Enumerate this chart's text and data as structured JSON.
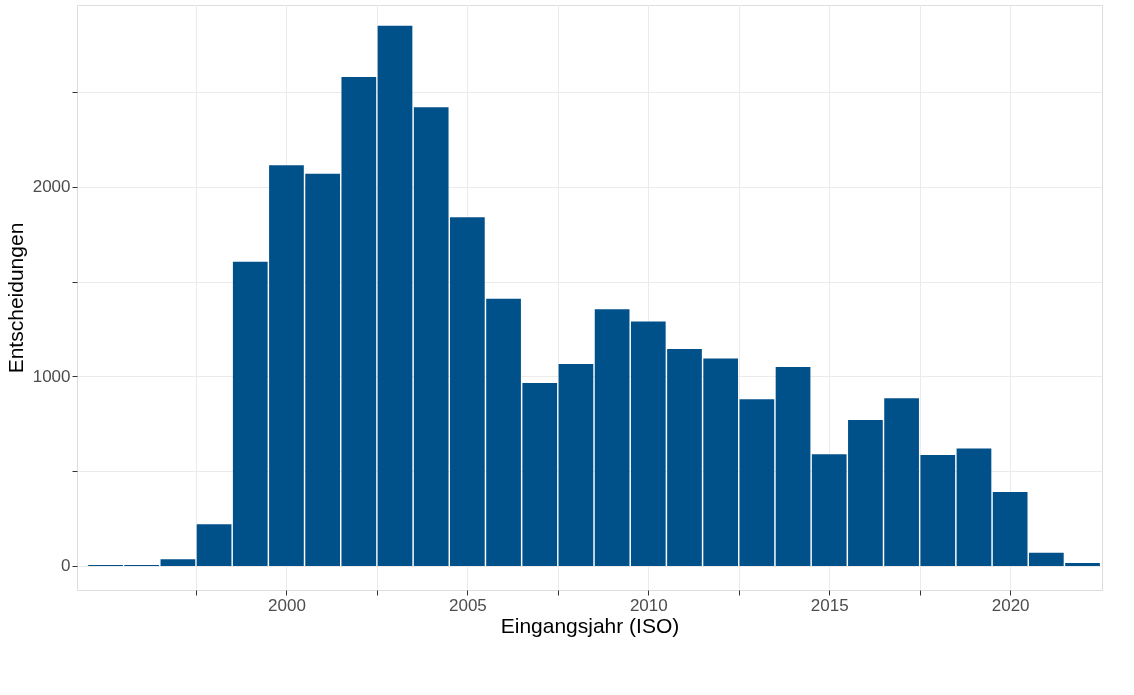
{
  "chart_data": {
    "type": "bar",
    "xlabel": "Eingangsjahr (ISO)",
    "ylabel": "Entscheidungen",
    "x": [
      1995,
      1996,
      1997,
      1998,
      1999,
      2000,
      2001,
      2002,
      2003,
      2004,
      2005,
      2006,
      2007,
      2008,
      2009,
      2010,
      2011,
      2012,
      2013,
      2014,
      2015,
      2016,
      2017,
      2018,
      2019,
      2020,
      2021,
      2022
    ],
    "values": [
      5,
      5,
      35,
      220,
      1605,
      2115,
      2070,
      2580,
      2850,
      2420,
      1840,
      1410,
      965,
      1065,
      1355,
      1290,
      1145,
      1095,
      880,
      1050,
      590,
      770,
      885,
      585,
      620,
      390,
      70,
      15
    ],
    "color": "#00508a",
    "xlim": [
      1994.35,
      2022.4
    ],
    "ylim": [
      -127,
      2960
    ],
    "xticks": [
      {
        "value": 1997.5,
        "label": null
      },
      2000,
      {
        "value": 2002.5,
        "label": null
      },
      2005,
      {
        "value": 2007.5,
        "label": null
      },
      2010,
      {
        "value": 2012.5,
        "label": null
      },
      2015,
      {
        "value": 2017.5,
        "label": null
      },
      2020
    ],
    "yticks": [
      0,
      {
        "value": 500,
        "label": null
      },
      1000,
      {
        "value": 1500,
        "label": null
      },
      2000,
      {
        "value": 2500,
        "label": null
      }
    ],
    "grid": true
  }
}
